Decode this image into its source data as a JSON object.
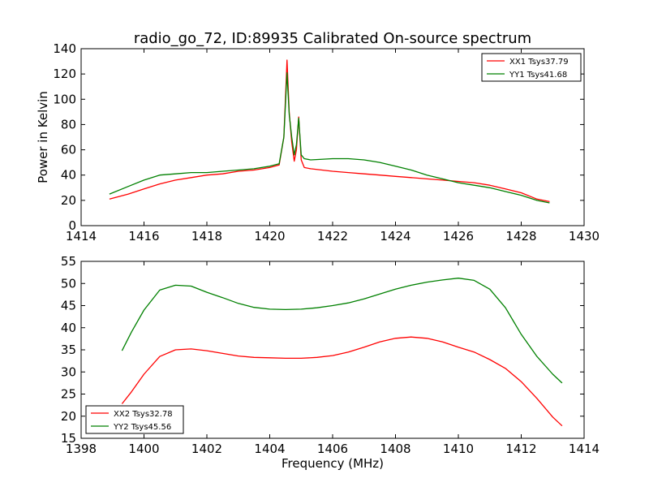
{
  "chart_data": [
    {
      "type": "line",
      "title": "radio_go_72, ID:89935 Calibrated On-source spectrum",
      "xlabel": "",
      "ylabel": "Power in Kelvin",
      "xlim": [
        1414,
        1430
      ],
      "ylim": [
        0,
        140
      ],
      "xticks": [
        "1414",
        "1416",
        "1418",
        "1420",
        "1422",
        "1424",
        "1426",
        "1428",
        "1430"
      ],
      "yticks": [
        "0",
        "20",
        "40",
        "60",
        "80",
        "100",
        "120",
        "140"
      ],
      "grid": false,
      "legend_position": "top-right",
      "series": [
        {
          "name": "XX1 Tsys37.79",
          "color": "#ff0000",
          "x": [
            1414.9,
            1415.5,
            1416,
            1416.5,
            1417,
            1417.5,
            1418,
            1418.5,
            1419,
            1419.5,
            1420,
            1420.3,
            1420.45,
            1420.55,
            1420.62,
            1420.7,
            1420.78,
            1420.85,
            1420.92,
            1421,
            1421.1,
            1421.3,
            1422,
            1422.5,
            1423,
            1423.5,
            1424,
            1424.5,
            1425,
            1425.5,
            1426,
            1426.5,
            1427,
            1427.5,
            1428,
            1428.5,
            1428.9
          ],
          "y": [
            21,
            25,
            29,
            33,
            36,
            38,
            40,
            41,
            43,
            44,
            46,
            48,
            70,
            131,
            90,
            66,
            51,
            60,
            86,
            52,
            46,
            45,
            43,
            42,
            41,
            40,
            39,
            38,
            37,
            36,
            35,
            34,
            32,
            29,
            26,
            21,
            19
          ]
        },
        {
          "name": "YY1 Tsys41.68",
          "color": "#008000",
          "x": [
            1414.9,
            1415.5,
            1416,
            1416.5,
            1417,
            1417.5,
            1418,
            1418.5,
            1419,
            1419.5,
            1420,
            1420.3,
            1420.45,
            1420.55,
            1420.62,
            1420.7,
            1420.78,
            1420.85,
            1420.92,
            1421,
            1421.1,
            1421.3,
            1422,
            1422.5,
            1423,
            1423.5,
            1424,
            1424.5,
            1425,
            1425.5,
            1426,
            1426.5,
            1427,
            1427.5,
            1428,
            1428.5,
            1428.9
          ],
          "y": [
            25,
            31,
            36,
            40,
            41,
            42,
            42,
            43,
            44,
            45,
            47,
            49,
            70,
            121,
            88,
            70,
            56,
            64,
            85,
            56,
            53,
            52,
            53,
            53,
            52,
            50,
            47,
            44,
            40,
            37,
            34,
            32,
            30,
            27,
            24,
            20,
            18
          ]
        }
      ]
    },
    {
      "type": "line",
      "title": "",
      "xlabel": "Frequency (MHz)",
      "ylabel": "",
      "xlim": [
        1398,
        1414
      ],
      "ylim": [
        15,
        55
      ],
      "xticks": [
        "1398",
        "1400",
        "1402",
        "1404",
        "1406",
        "1408",
        "1410",
        "1412",
        "1414"
      ],
      "yticks": [
        "15",
        "20",
        "25",
        "30",
        "35",
        "40",
        "45",
        "50",
        "55"
      ],
      "grid": false,
      "legend_position": "bottom-left",
      "series": [
        {
          "name": "XX2 Tsys32.78",
          "color": "#ff0000",
          "x": [
            1399.3,
            1399.6,
            1400,
            1400.5,
            1401,
            1401.5,
            1402,
            1402.5,
            1403,
            1403.5,
            1404,
            1404.5,
            1405,
            1405.5,
            1406,
            1406.5,
            1407,
            1407.5,
            1408,
            1408.5,
            1409,
            1409.5,
            1410,
            1410.5,
            1411,
            1411.5,
            1412,
            1412.5,
            1413,
            1413.3
          ],
          "y": [
            22.8,
            25.5,
            29.5,
            33.5,
            35,
            35.2,
            34.8,
            34.2,
            33.6,
            33.3,
            33.2,
            33.1,
            33.1,
            33.3,
            33.7,
            34.5,
            35.6,
            36.8,
            37.6,
            37.9,
            37.6,
            36.8,
            35.6,
            34.5,
            32.8,
            30.8,
            27.8,
            24,
            19.8,
            17.8
          ]
        },
        {
          "name": "YY2 Tsys45.56",
          "color": "#008000",
          "x": [
            1399.3,
            1399.6,
            1400,
            1400.5,
            1401,
            1401.5,
            1402,
            1402.5,
            1403,
            1403.5,
            1404,
            1404.5,
            1405,
            1405.5,
            1406,
            1406.5,
            1407,
            1407.5,
            1408,
            1408.5,
            1409,
            1409.5,
            1410,
            1410.5,
            1411,
            1411.5,
            1412,
            1412.5,
            1413,
            1413.3
          ],
          "y": [
            34.8,
            39,
            44,
            48.5,
            49.6,
            49.4,
            48,
            46.8,
            45.5,
            44.6,
            44.2,
            44.1,
            44.2,
            44.5,
            45,
            45.6,
            46.5,
            47.6,
            48.7,
            49.6,
            50.3,
            50.8,
            51.2,
            50.7,
            48.7,
            44.5,
            38.5,
            33.5,
            29.5,
            27.5
          ]
        }
      ]
    }
  ]
}
